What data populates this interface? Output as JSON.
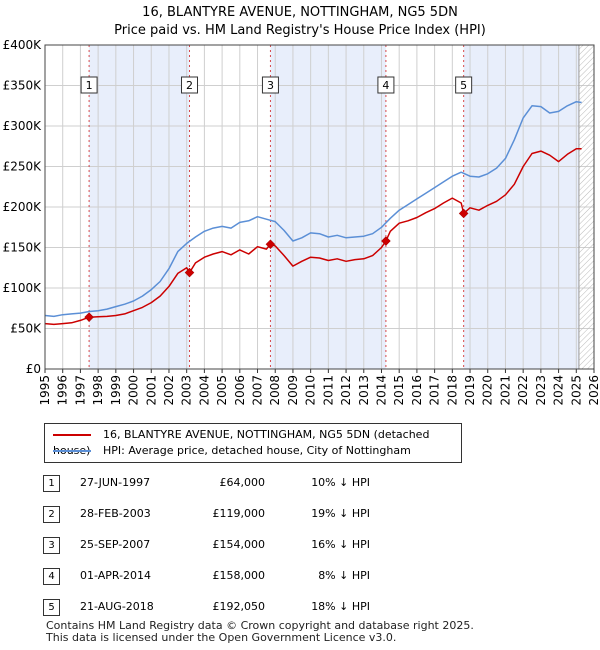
{
  "title": {
    "line1": "16, BLANTYRE AVENUE, NOTTINGHAM, NG5 5DN",
    "line2": "Price paid vs. HM Land Registry's House Price Index (HPI)"
  },
  "colors": {
    "property": "#cc0000",
    "hpi": "#5b8fd6",
    "shade": "#e8eefb",
    "grid": "#cfcfcf",
    "future_hatch": "#bbbbbb"
  },
  "chart_data": {
    "type": "line",
    "xlabel": "",
    "ylabel": "",
    "xlim": [
      1995.0,
      2026.0
    ],
    "ylim": [
      0,
      400000
    ],
    "x_ticks": [
      1995,
      1996,
      1997,
      1998,
      1999,
      2000,
      2001,
      2002,
      2003,
      2004,
      2005,
      2006,
      2007,
      2008,
      2009,
      2010,
      2011,
      2012,
      2013,
      2014,
      2015,
      2016,
      2017,
      2018,
      2019,
      2020,
      2021,
      2022,
      2023,
      2024,
      2025,
      2026
    ],
    "y_ticks": [
      {
        "value": 0,
        "label": "£0"
      },
      {
        "value": 50000,
        "label": "£50K"
      },
      {
        "value": 100000,
        "label": "£100K"
      },
      {
        "value": 150000,
        "label": "£150K"
      },
      {
        "value": 200000,
        "label": "£200K"
      },
      {
        "value": 250000,
        "label": "£250K"
      },
      {
        "value": 300000,
        "label": "£300K"
      },
      {
        "value": 350000,
        "label": "£350K"
      },
      {
        "value": 400000,
        "label": "£400K"
      }
    ],
    "grid": true,
    "future_from": 2025.15,
    "shaded_ranges": [
      [
        1997.49,
        2003.16
      ],
      [
        2007.73,
        2014.25
      ],
      [
        2018.64,
        2025.15
      ]
    ],
    "series": [
      {
        "name": "16, BLANTYRE AVENUE, NOTTINGHAM, NG5 5DN (detached house)",
        "color": "#cc0000",
        "x": [
          1995.0,
          1995.5,
          1996.0,
          1996.5,
          1997.0,
          1997.49,
          1998.0,
          1998.5,
          1999.0,
          1999.5,
          2000.0,
          2000.5,
          2001.0,
          2001.5,
          2002.0,
          2002.5,
          2003.0,
          2003.16,
          2003.5,
          2004.0,
          2004.5,
          2005.0,
          2005.5,
          2006.0,
          2006.5,
          2007.0,
          2007.5,
          2007.73,
          2008.0,
          2008.5,
          2009.0,
          2009.5,
          2010.0,
          2010.5,
          2011.0,
          2011.5,
          2012.0,
          2012.5,
          2013.0,
          2013.5,
          2014.0,
          2014.25,
          2014.5,
          2015.0,
          2015.5,
          2016.0,
          2016.5,
          2017.0,
          2017.5,
          2018.0,
          2018.5,
          2018.64,
          2019.0,
          2019.5,
          2020.0,
          2020.5,
          2021.0,
          2021.5,
          2022.0,
          2022.5,
          2023.0,
          2023.5,
          2024.0,
          2024.5,
          2025.0,
          2025.3
        ],
        "y": [
          56000,
          55000,
          56000,
          57000,
          60000,
          64000,
          64500,
          65000,
          66000,
          68000,
          72000,
          76000,
          82000,
          90000,
          102000,
          118000,
          125000,
          119000,
          131000,
          138000,
          142000,
          145000,
          141000,
          147000,
          142000,
          151000,
          148000,
          154000,
          152000,
          140000,
          127000,
          133000,
          138000,
          137000,
          134000,
          136000,
          133000,
          135000,
          136000,
          140000,
          150000,
          158000,
          170000,
          180000,
          183000,
          187000,
          193000,
          198000,
          205000,
          211000,
          205000,
          192050,
          199000,
          196000,
          202000,
          207000,
          215000,
          228000,
          250000,
          266000,
          269000,
          264000,
          256000,
          265000,
          272000,
          272000
        ]
      },
      {
        "name": "HPI: Average price, detached house, City of Nottingham",
        "color": "#5b8fd6",
        "x": [
          1995.0,
          1995.5,
          1996.0,
          1996.5,
          1997.0,
          1997.5,
          1998.0,
          1998.5,
          1999.0,
          1999.5,
          2000.0,
          2000.5,
          2001.0,
          2001.5,
          2002.0,
          2002.5,
          2003.0,
          2003.5,
          2004.0,
          2004.5,
          2005.0,
          2005.5,
          2006.0,
          2006.5,
          2007.0,
          2007.5,
          2008.0,
          2008.5,
          2009.0,
          2009.5,
          2010.0,
          2010.5,
          2011.0,
          2011.5,
          2012.0,
          2012.5,
          2013.0,
          2013.5,
          2014.0,
          2014.5,
          2015.0,
          2015.5,
          2016.0,
          2016.5,
          2017.0,
          2017.5,
          2018.0,
          2018.5,
          2019.0,
          2019.5,
          2020.0,
          2020.5,
          2021.0,
          2021.5,
          2022.0,
          2022.5,
          2023.0,
          2023.5,
          2024.0,
          2024.5,
          2025.0,
          2025.3
        ],
        "y": [
          66000,
          65000,
          67000,
          68000,
          69000,
          71000,
          72000,
          74000,
          77000,
          80000,
          84000,
          90000,
          98000,
          108000,
          124000,
          145000,
          155000,
          163000,
          170000,
          174000,
          176000,
          174000,
          181000,
          183000,
          188000,
          185000,
          182000,
          171000,
          158000,
          162000,
          168000,
          167000,
          163000,
          165000,
          162000,
          163000,
          164000,
          167000,
          175000,
          186000,
          196000,
          203000,
          210000,
          217000,
          224000,
          231000,
          238000,
          243000,
          238000,
          237000,
          241000,
          248000,
          260000,
          283000,
          310000,
          325000,
          324000,
          316000,
          318000,
          325000,
          330000,
          329000
        ]
      }
    ],
    "sales": [
      {
        "n": "1",
        "x": 1997.49,
        "y": 64000
      },
      {
        "n": "2",
        "x": 2003.16,
        "y": 119000
      },
      {
        "n": "3",
        "x": 2007.73,
        "y": 154000
      },
      {
        "n": "4",
        "x": 2014.25,
        "y": 158000
      },
      {
        "n": "5",
        "x": 2018.64,
        "y": 192050
      }
    ]
  },
  "legend": {
    "property_label": "16, BLANTYRE AVENUE, NOTTINGHAM, NG5 5DN (detached house)",
    "hpi_label": "HPI: Average price, detached house, City of Nottingham"
  },
  "transactions": [
    {
      "n": "1",
      "date": "27-JUN-1997",
      "price": "£64,000",
      "hpi": "10% ↓ HPI"
    },
    {
      "n": "2",
      "date": "28-FEB-2003",
      "price": "£119,000",
      "hpi": "19% ↓ HPI"
    },
    {
      "n": "3",
      "date": "25-SEP-2007",
      "price": "£154,000",
      "hpi": "16% ↓ HPI"
    },
    {
      "n": "4",
      "date": "01-APR-2014",
      "price": "£158,000",
      "hpi": "8% ↓ HPI"
    },
    {
      "n": "5",
      "date": "21-AUG-2018",
      "price": "£192,050",
      "hpi": "18% ↓ HPI"
    }
  ],
  "footer": {
    "line1": "Contains HM Land Registry data © Crown copyright and database right 2025.",
    "line2": "This data is licensed under the Open Government Licence v3.0."
  }
}
